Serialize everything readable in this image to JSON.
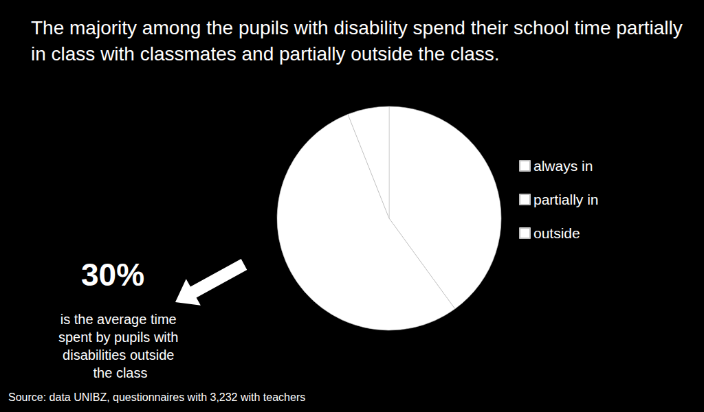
{
  "chart_data": {
    "type": "pie",
    "title": "The majority among the pupils with disability spend their school time partially in class with classmates and partially outside the class.",
    "categories": [
      "always in",
      "partially in",
      "outside"
    ],
    "values": [
      40,
      54,
      6
    ],
    "colors": [
      "#ffffff",
      "#ffffff",
      "#ffffff"
    ],
    "legend": "right",
    "annotation": {
      "value": 30,
      "label": "30%",
      "text": "is the average time spent by pupils with disabilities outside the class"
    },
    "source": "Source: data UNIBZ, questionnaires with 3,232 with teachers"
  }
}
